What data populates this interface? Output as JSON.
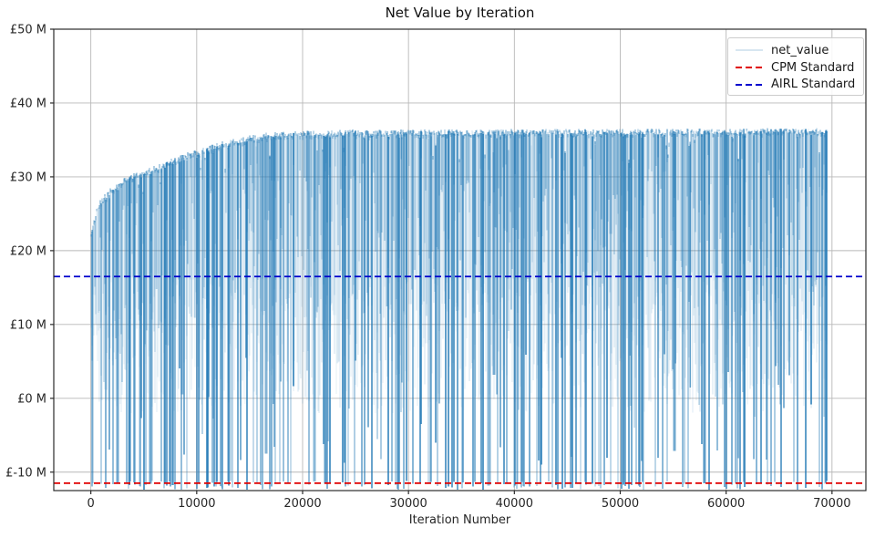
{
  "figure": {
    "title": "Net Value by Iteration",
    "xlabel": "Iteration Number"
  },
  "legend": {
    "position": "upper right",
    "entries": [
      {
        "label": "net_value",
        "color": "#1f77b4",
        "style": "solid-faint"
      },
      {
        "label": "CPM Standard",
        "color": "#e00000",
        "style": "dashed"
      },
      {
        "label": "AIRL Standard",
        "color": "#0000cd",
        "style": "dashed"
      }
    ]
  },
  "chart_data": {
    "type": "line",
    "title": "Net Value by Iteration",
    "xlabel": "Iteration Number",
    "ylabel": "",
    "currency": "£",
    "unit": "M",
    "xlim": [
      -3500,
      73200
    ],
    "ylim": [
      -12.5,
      50
    ],
    "x_ticks": [
      0,
      10000,
      20000,
      30000,
      40000,
      50000,
      60000,
      70000
    ],
    "x_tick_labels": [
      "0",
      "10000",
      "20000",
      "30000",
      "40000",
      "50000",
      "60000",
      "70000"
    ],
    "y_ticks": [
      50,
      40,
      30,
      20,
      10,
      0,
      -10
    ],
    "y_tick_labels": [
      "£50 M",
      "£40 M",
      "£30 M",
      "£20 M",
      "£10 M",
      "£0 M",
      "£-10 M"
    ],
    "grid": true,
    "grid_color": "#b8b8b8",
    "spine_color": "#2b2b2b",
    "legend_position": "upper right",
    "series": [
      {
        "name": "net_value",
        "type": "noisy_line",
        "color": "#1f77b4",
        "x_start": 0,
        "x_end": 69500,
        "upper_envelope_m": [
          [
            0,
            22.0
          ],
          [
            500,
            25.3
          ],
          [
            1000,
            26.8
          ],
          [
            2000,
            28.3
          ],
          [
            3000,
            29.4
          ],
          [
            4000,
            30.1
          ],
          [
            5000,
            30.7
          ],
          [
            6000,
            31.1
          ],
          [
            7000,
            31.6
          ],
          [
            8000,
            32.4
          ],
          [
            9000,
            32.9
          ],
          [
            10000,
            33.3
          ],
          [
            11000,
            33.7
          ],
          [
            12000,
            34.3
          ],
          [
            13000,
            34.6
          ],
          [
            14000,
            34.9
          ],
          [
            15000,
            35.2
          ],
          [
            16000,
            35.5
          ],
          [
            18000,
            35.8
          ],
          [
            20000,
            35.9
          ],
          [
            25000,
            36.0
          ],
          [
            70000,
            36.2
          ]
        ],
        "lower_bound_m": -12.4,
        "behavior": "value oscillates rapidly between the rising upper envelope and deep drops reaching about -12M across the whole run",
        "noise_seed": 11,
        "deep_drop_prob": 0.3
      },
      {
        "name": "CPM Standard",
        "type": "hline",
        "value_m": -11.5,
        "color": "#e00000",
        "linestyle": "dashed"
      },
      {
        "name": "AIRL Standard",
        "type": "hline",
        "value_m": 16.5,
        "color": "#0000cd",
        "linestyle": "dashed"
      }
    ]
  }
}
